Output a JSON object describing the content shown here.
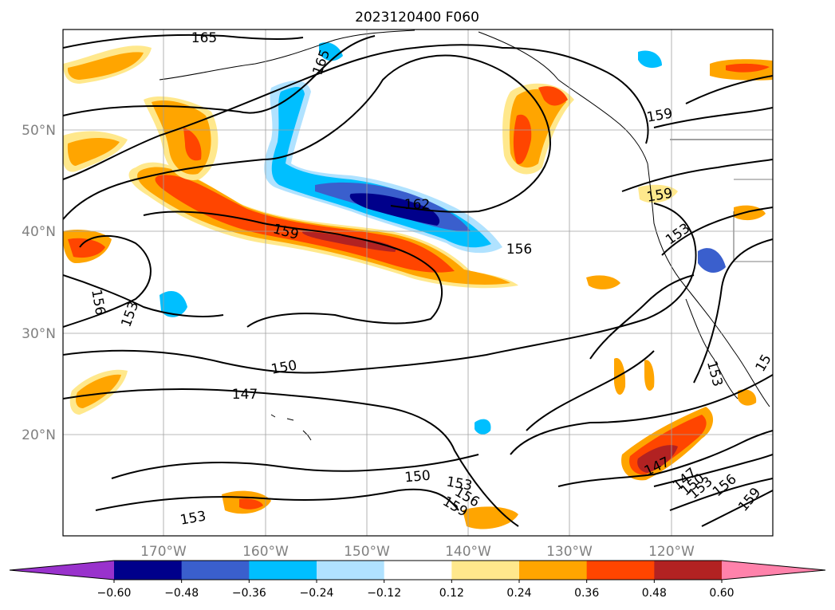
{
  "title": "2023120400 F060",
  "axes": {
    "lat_labels": [
      "50°N",
      "40°N",
      "30°N",
      "20°N"
    ],
    "lon_labels": [
      "170°W",
      "160°W",
      "150°W",
      "140°W",
      "130°W",
      "120°W"
    ]
  },
  "colorbar": {
    "ticks": [
      "−0.60",
      "−0.48",
      "−0.36",
      "−0.24",
      "−0.12",
      "0.12",
      "0.24",
      "0.36",
      "0.48",
      "0.60"
    ],
    "colors": [
      "#9932cc",
      "#00008b",
      "#3a5fcd",
      "#00bfff",
      "#b0e2ff",
      "#ffffff",
      "#ffe88c",
      "#ffa500",
      "#ff4500",
      "#b22222",
      "#ff82ab"
    ]
  },
  "contours": {
    "labels": [
      "165",
      "165",
      "159",
      "162",
      "159",
      "156",
      "156",
      "153",
      "159",
      "153",
      "150",
      "147",
      "150",
      "153",
      "156",
      "159",
      "153",
      "147",
      "147",
      "150",
      "153",
      "156",
      "159",
      "153",
      "15"
    ]
  }
}
